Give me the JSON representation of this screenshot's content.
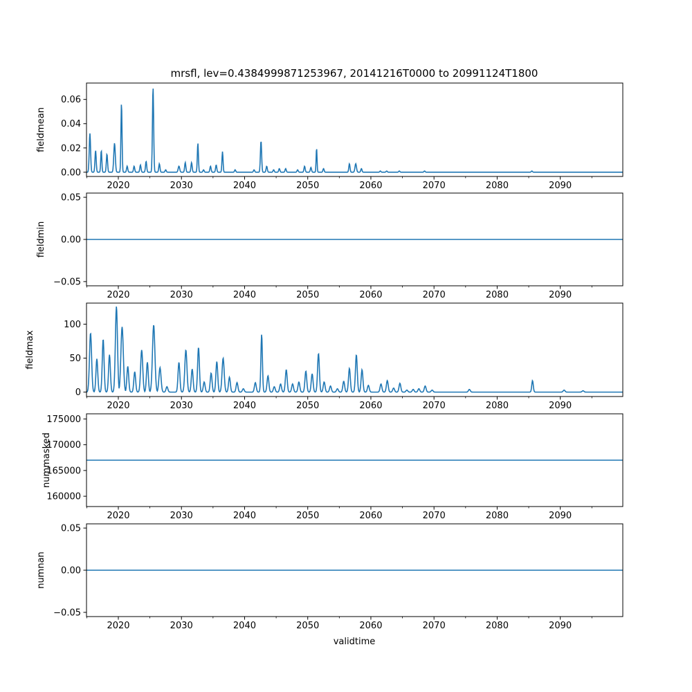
{
  "figure": {
    "title": "mrsfl, lev=0.4384999871253967, 20141216T0000 to 20991124T1800",
    "xlabel": "validtime"
  },
  "colors": {
    "line": "#1f77b4",
    "axes": "#000000",
    "background": "#ffffff"
  },
  "chart_data": [
    {
      "name": "fieldmean",
      "type": "line",
      "ylabel": "fieldmean",
      "xlim": [
        2014.96,
        2099.9
      ],
      "ylim": [
        -0.0035,
        0.0735
      ],
      "yticks": [
        0.0,
        0.02,
        0.04,
        0.06
      ],
      "ytick_labels": [
        "0.00",
        "0.02",
        "0.04",
        "0.06"
      ],
      "xticks": [
        2020,
        2030,
        2040,
        2050,
        2060,
        2070,
        2080,
        2090
      ],
      "xtick_labels": [
        "2020",
        "2030",
        "2040",
        "2050",
        "2060",
        "2070",
        "2080",
        "2090"
      ],
      "peaks": [
        [
          2015.5,
          0.032,
          0.22
        ],
        [
          2016.4,
          0.018,
          0.2
        ],
        [
          2017.3,
          0.018,
          0.18
        ],
        [
          2018.2,
          0.015,
          0.2
        ],
        [
          2019.4,
          0.024,
          0.25
        ],
        [
          2020.5,
          0.057,
          0.18
        ],
        [
          2021.4,
          0.005,
          0.2
        ],
        [
          2022.5,
          0.005,
          0.2
        ],
        [
          2023.5,
          0.006,
          0.2
        ],
        [
          2024.4,
          0.009,
          0.2
        ],
        [
          2025.5,
          0.07,
          0.2
        ],
        [
          2026.5,
          0.007,
          0.2
        ],
        [
          2027.5,
          0.002,
          0.2
        ],
        [
          2029.6,
          0.005,
          0.25
        ],
        [
          2030.6,
          0.008,
          0.2
        ],
        [
          2031.6,
          0.008,
          0.2
        ],
        [
          2032.6,
          0.024,
          0.18
        ],
        [
          2033.5,
          0.002,
          0.2
        ],
        [
          2034.6,
          0.005,
          0.2
        ],
        [
          2035.5,
          0.006,
          0.2
        ],
        [
          2036.5,
          0.017,
          0.18
        ],
        [
          2038.5,
          0.002,
          0.2
        ],
        [
          2041.5,
          0.002,
          0.2
        ],
        [
          2042.6,
          0.026,
          0.2
        ],
        [
          2043.5,
          0.005,
          0.2
        ],
        [
          2044.6,
          0.002,
          0.2
        ],
        [
          2045.5,
          0.003,
          0.2
        ],
        [
          2046.5,
          0.003,
          0.2
        ],
        [
          2048.4,
          0.002,
          0.2
        ],
        [
          2049.5,
          0.005,
          0.2
        ],
        [
          2050.5,
          0.004,
          0.2
        ],
        [
          2051.4,
          0.02,
          0.15
        ],
        [
          2052.5,
          0.003,
          0.2
        ],
        [
          2056.6,
          0.007,
          0.2
        ],
        [
          2057.6,
          0.007,
          0.25
        ],
        [
          2058.5,
          0.003,
          0.2
        ],
        [
          2061.5,
          0.001,
          0.2
        ],
        [
          2062.5,
          0.001,
          0.2
        ],
        [
          2064.5,
          0.001,
          0.2
        ],
        [
          2068.5,
          0.001,
          0.2
        ],
        [
          2085.5,
          0.001,
          0.2
        ]
      ]
    },
    {
      "name": "fieldmin",
      "type": "line",
      "ylabel": "fieldmin",
      "xlim": [
        2014.96,
        2099.9
      ],
      "ylim": [
        -0.055,
        0.055
      ],
      "yticks": [
        -0.05,
        0.0,
        0.05
      ],
      "ytick_labels": [
        "−0.05",
        "0.00",
        "0.05"
      ],
      "xticks": [
        2020,
        2030,
        2040,
        2050,
        2060,
        2070,
        2080,
        2090
      ],
      "xtick_labels": [
        "2020",
        "2030",
        "2040",
        "2050",
        "2060",
        "2070",
        "2080",
        "2090"
      ],
      "constant": 0.0
    },
    {
      "name": "fieldmax",
      "type": "line",
      "ylabel": "fieldmax",
      "xlim": [
        2014.96,
        2099.9
      ],
      "ylim": [
        -6.5,
        131
      ],
      "yticks": [
        0,
        50,
        100
      ],
      "ytick_labels": [
        "0",
        "50",
        "100"
      ],
      "xticks": [
        2020,
        2030,
        2040,
        2050,
        2060,
        2070,
        2080,
        2090
      ],
      "xtick_labels": [
        "2020",
        "2030",
        "2040",
        "2050",
        "2060",
        "2070",
        "2080",
        "2090"
      ],
      "peaks": [
        [
          2015.6,
          87,
          0.35
        ],
        [
          2016.6,
          49,
          0.3
        ],
        [
          2017.6,
          78,
          0.3
        ],
        [
          2018.6,
          55,
          0.3
        ],
        [
          2019.7,
          126,
          0.35
        ],
        [
          2020.6,
          96,
          0.4
        ],
        [
          2021.5,
          38,
          0.3
        ],
        [
          2022.6,
          30,
          0.3
        ],
        [
          2023.7,
          62,
          0.35
        ],
        [
          2024.6,
          44,
          0.3
        ],
        [
          2025.6,
          99,
          0.4
        ],
        [
          2026.6,
          36,
          0.35
        ],
        [
          2027.7,
          8,
          0.3
        ],
        [
          2029.6,
          44,
          0.3
        ],
        [
          2030.7,
          62,
          0.35
        ],
        [
          2031.7,
          34,
          0.3
        ],
        [
          2032.7,
          66,
          0.3
        ],
        [
          2033.6,
          15,
          0.3
        ],
        [
          2034.7,
          28,
          0.3
        ],
        [
          2035.6,
          45,
          0.3
        ],
        [
          2036.6,
          50,
          0.35
        ],
        [
          2037.6,
          22,
          0.3
        ],
        [
          2038.8,
          14,
          0.3
        ],
        [
          2039.8,
          5,
          0.3
        ],
        [
          2041.7,
          14,
          0.3
        ],
        [
          2042.7,
          85,
          0.25
        ],
        [
          2043.7,
          24,
          0.3
        ],
        [
          2044.7,
          8,
          0.3
        ],
        [
          2045.7,
          12,
          0.3
        ],
        [
          2046.6,
          33,
          0.3
        ],
        [
          2047.6,
          12,
          0.3
        ],
        [
          2048.6,
          15,
          0.3
        ],
        [
          2049.7,
          31,
          0.3
        ],
        [
          2050.7,
          27,
          0.3
        ],
        [
          2051.7,
          57,
          0.3
        ],
        [
          2052.6,
          15,
          0.3
        ],
        [
          2053.6,
          9,
          0.3
        ],
        [
          2054.7,
          5,
          0.3
        ],
        [
          2055.7,
          16,
          0.3
        ],
        [
          2056.6,
          35,
          0.3
        ],
        [
          2057.7,
          55,
          0.3
        ],
        [
          2058.6,
          33,
          0.3
        ],
        [
          2059.6,
          10,
          0.3
        ],
        [
          2061.6,
          12,
          0.3
        ],
        [
          2062.6,
          17,
          0.3
        ],
        [
          2063.6,
          6,
          0.3
        ],
        [
          2064.6,
          13,
          0.3
        ],
        [
          2065.7,
          3,
          0.3
        ],
        [
          2066.7,
          4,
          0.3
        ],
        [
          2067.6,
          5,
          0.3
        ],
        [
          2068.6,
          9,
          0.3
        ],
        [
          2069.7,
          3,
          0.3
        ],
        [
          2075.6,
          4,
          0.3
        ],
        [
          2085.6,
          17,
          0.25
        ],
        [
          2090.6,
          3,
          0.3
        ],
        [
          2093.6,
          2,
          0.3
        ]
      ]
    },
    {
      "name": "nummasked",
      "type": "line",
      "ylabel": "nummasked",
      "xlim": [
        2014.96,
        2099.9
      ],
      "ylim": [
        158000,
        176000
      ],
      "yticks": [
        160000,
        165000,
        170000,
        175000
      ],
      "ytick_labels": [
        "160000",
        "165000",
        "170000",
        "175000"
      ],
      "xticks": [
        2020,
        2030,
        2040,
        2050,
        2060,
        2070,
        2080,
        2090
      ],
      "xtick_labels": [
        "2020",
        "2030",
        "2040",
        "2050",
        "2060",
        "2070",
        "2080",
        "2090"
      ],
      "constant": 167000
    },
    {
      "name": "numnan",
      "type": "line",
      "ylabel": "numnan",
      "xlim": [
        2014.96,
        2099.9
      ],
      "ylim": [
        -0.055,
        0.055
      ],
      "yticks": [
        -0.05,
        0.0,
        0.05
      ],
      "ytick_labels": [
        "−0.05",
        "0.00",
        "0.05"
      ],
      "xticks": [
        2020,
        2030,
        2040,
        2050,
        2060,
        2070,
        2080,
        2090
      ],
      "xtick_labels": [
        "2020",
        "2030",
        "2040",
        "2050",
        "2060",
        "2070",
        "2080",
        "2090"
      ],
      "constant": 0.0
    }
  ]
}
